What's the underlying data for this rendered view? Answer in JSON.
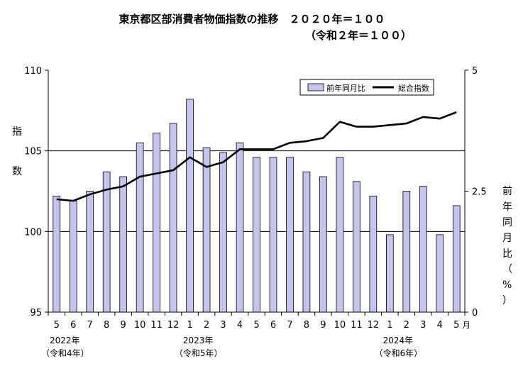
{
  "chart_data": {
    "type": "bar+line",
    "title_line1": "東京都区部消費者物価指数の推移　２０２０年＝１００",
    "title_line2": "（令和２年＝１００）",
    "categories": [
      "5",
      "6",
      "7",
      "8",
      "9",
      "10",
      "11",
      "12",
      "1",
      "2",
      "3",
      "4",
      "5",
      "6",
      "7",
      "8",
      "9",
      "10",
      "11",
      "12",
      "1",
      "2",
      "3",
      "4",
      "5"
    ],
    "month_suffix": "月",
    "year_labels": [
      {
        "index": 0,
        "year": "2022年",
        "era": "（令和4年）"
      },
      {
        "index": 8,
        "year": "2023年",
        "era": "（令和5年）"
      },
      {
        "index": 20,
        "year": "2024年",
        "era": "（令和6年）"
      }
    ],
    "left_axis": {
      "label": "指数",
      "min": 95,
      "max": 110,
      "ticks": [
        "95",
        "100",
        "105",
        "110"
      ],
      "tick_values": [
        95,
        100,
        105,
        110
      ]
    },
    "right_axis": {
      "label": "前年同月比（%）",
      "min": 0,
      "max": 5,
      "ticks": [
        "0",
        "2.5",
        "5"
      ],
      "tick_values": [
        0,
        2.5,
        5
      ]
    },
    "gridlines": [
      100,
      105
    ],
    "series": [
      {
        "name": "前年同月比",
        "type": "bar",
        "axis": "right",
        "color": "#c4c4f0",
        "values": [
          2.4,
          2.3,
          2.5,
          2.9,
          2.8,
          3.5,
          3.7,
          3.9,
          4.4,
          3.4,
          3.3,
          3.5,
          3.2,
          3.2,
          3.2,
          2.9,
          2.8,
          3.2,
          2.7,
          2.4,
          1.6,
          2.5,
          2.6,
          1.6,
          2.2
        ]
      },
      {
        "name": "総合指数",
        "type": "line",
        "axis": "left",
        "color": "#000000",
        "values": [
          102.0,
          101.9,
          102.3,
          102.6,
          102.8,
          103.4,
          103.6,
          103.8,
          104.6,
          104.0,
          104.3,
          105.1,
          105.1,
          105.1,
          105.5,
          105.6,
          105.8,
          106.8,
          106.5,
          106.5,
          106.6,
          106.7,
          107.1,
          107.0,
          107.4
        ]
      }
    ]
  }
}
